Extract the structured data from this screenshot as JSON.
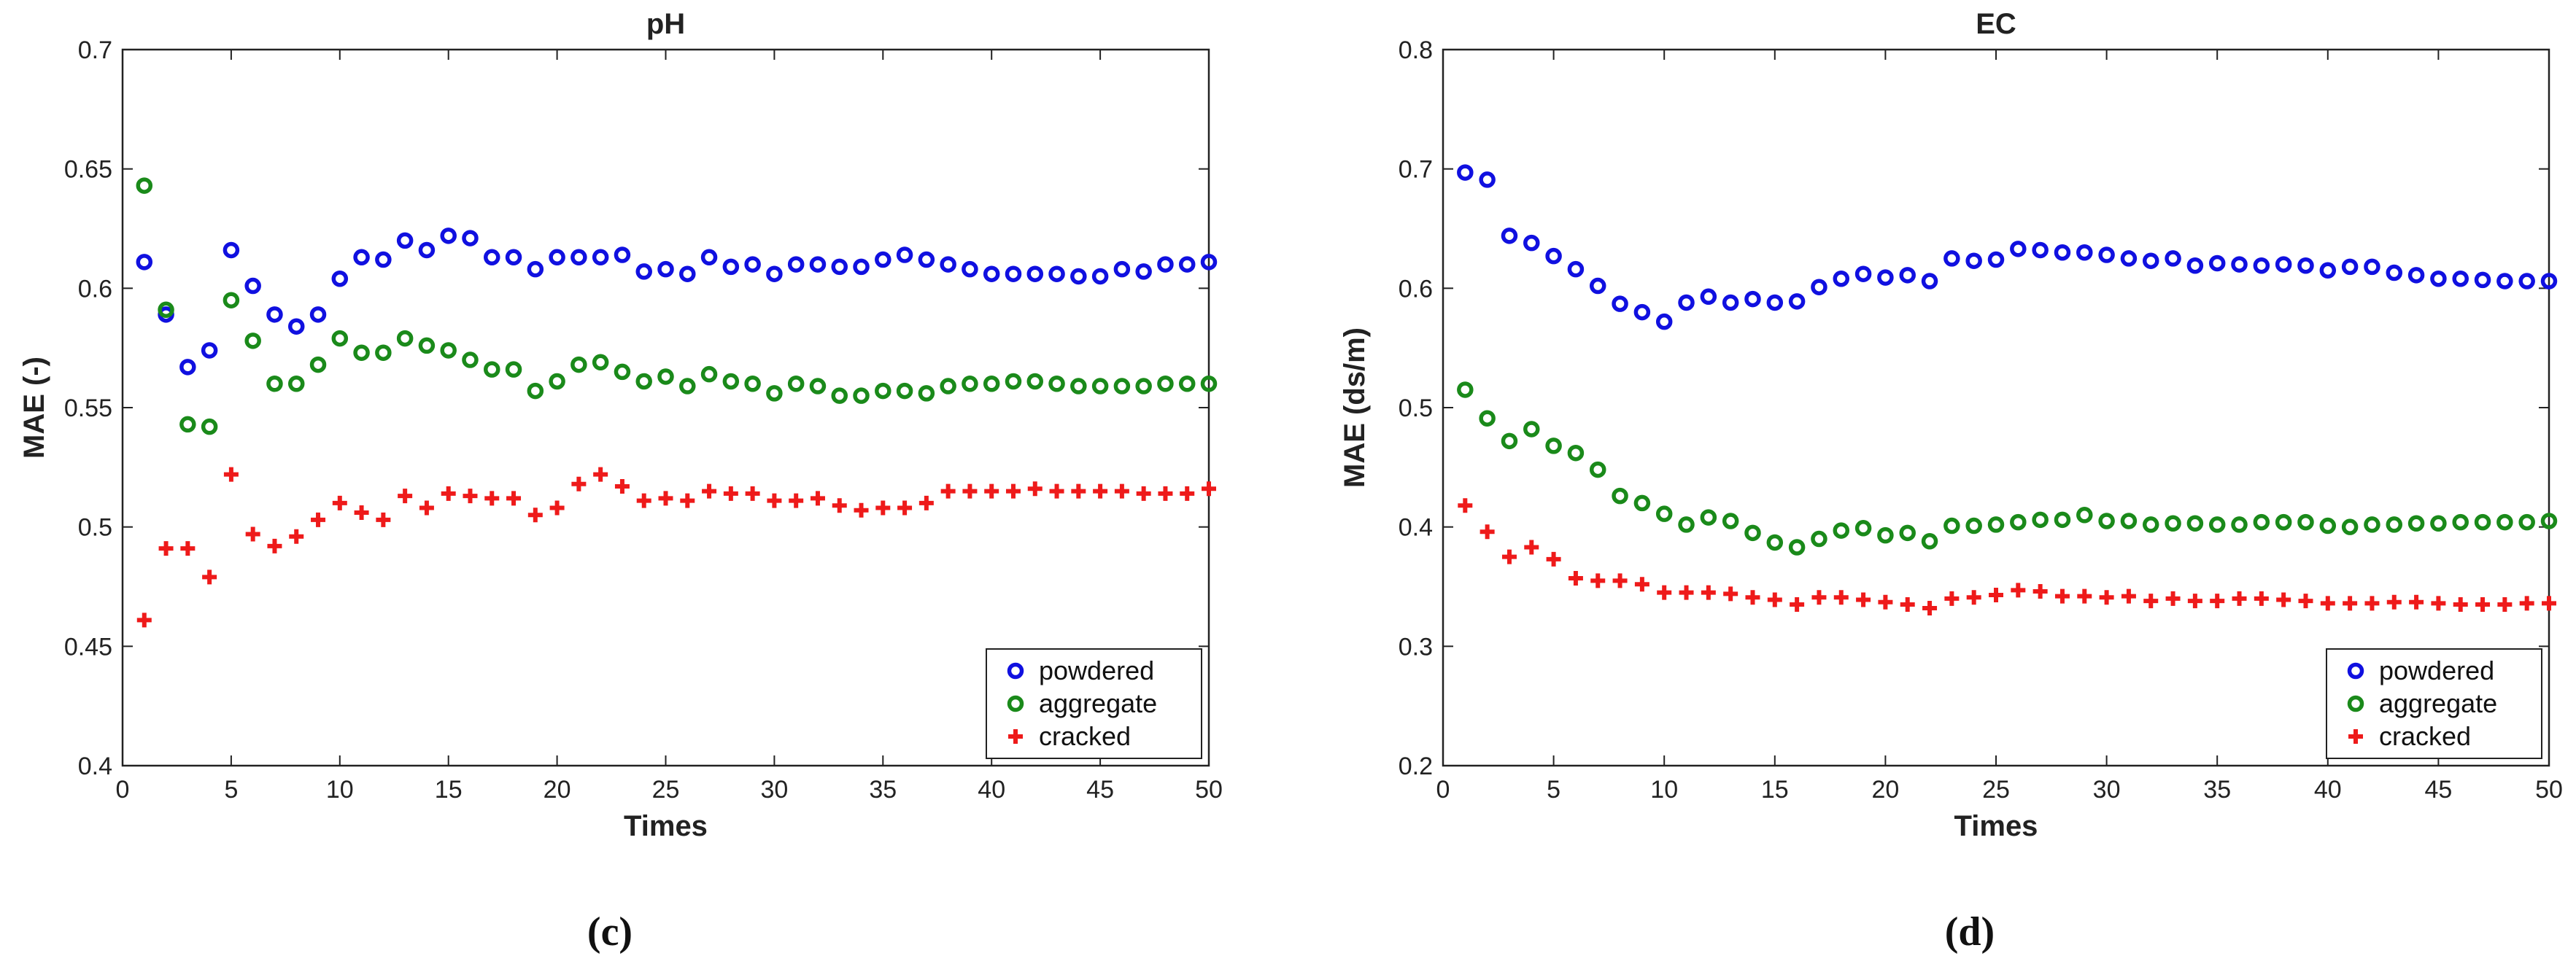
{
  "chart_data": [
    {
      "type": "scatter",
      "panel_label": "(c)",
      "title": "pH",
      "xlabel": "Times",
      "ylabel": "MAE (-)",
      "xlim": [
        0,
        50
      ],
      "ylim": [
        0.4,
        0.7
      ],
      "xticks": [
        0,
        5,
        10,
        15,
        20,
        25,
        30,
        35,
        40,
        45,
        50
      ],
      "xtick_labels": [
        "0",
        "5",
        "10",
        "15",
        "20",
        "25",
        "30",
        "35",
        "40",
        "45",
        "50"
      ],
      "yticks": [
        0.4,
        0.45,
        0.5,
        0.55,
        0.6,
        0.65,
        0.7
      ],
      "ytick_labels": [
        "0.4",
        "0.45",
        "0.5",
        "0.55",
        "0.6",
        "0.65",
        "0.7"
      ],
      "legend_position": "bottom-right",
      "x": [
        1,
        2,
        3,
        4,
        5,
        6,
        7,
        8,
        9,
        10,
        11,
        12,
        13,
        14,
        15,
        16,
        17,
        18,
        19,
        20,
        21,
        22,
        23,
        24,
        25,
        26,
        27,
        28,
        29,
        30,
        31,
        32,
        33,
        34,
        35,
        36,
        37,
        38,
        39,
        40,
        41,
        42,
        43,
        44,
        45,
        46,
        47,
        48,
        49,
        50
      ],
      "series": [
        {
          "name": "powdered",
          "color": "#1010e0",
          "marker": "circle",
          "values": [
            0.611,
            0.589,
            0.567,
            0.574,
            0.616,
            0.601,
            0.589,
            0.584,
            0.589,
            0.604,
            0.613,
            0.612,
            0.62,
            0.616,
            0.622,
            0.621,
            0.613,
            0.613,
            0.608,
            0.613,
            0.613,
            0.613,
            0.614,
            0.607,
            0.608,
            0.606,
            0.613,
            0.609,
            0.61,
            0.606,
            0.61,
            0.61,
            0.609,
            0.609,
            0.612,
            0.614,
            0.612,
            0.61,
            0.608,
            0.606,
            0.606,
            0.606,
            0.606,
            0.605,
            0.605,
            0.608,
            0.607,
            0.61,
            0.61,
            0.611
          ]
        },
        {
          "name": "aggregate",
          "color": "#1a8a1a",
          "marker": "circle",
          "values": [
            0.643,
            0.591,
            0.543,
            0.542,
            0.595,
            0.578,
            0.56,
            0.56,
            0.568,
            0.579,
            0.573,
            0.573,
            0.579,
            0.576,
            0.574,
            0.57,
            0.566,
            0.566,
            0.557,
            0.561,
            0.568,
            0.569,
            0.565,
            0.561,
            0.563,
            0.559,
            0.564,
            0.561,
            0.56,
            0.556,
            0.56,
            0.559,
            0.555,
            0.555,
            0.557,
            0.557,
            0.556,
            0.559,
            0.56,
            0.56,
            0.561,
            0.561,
            0.56,
            0.559,
            0.559,
            0.559,
            0.559,
            0.56,
            0.56,
            0.56
          ]
        },
        {
          "name": "cracked",
          "color": "#ee1a1a",
          "marker": "plus",
          "values": [
            0.461,
            0.491,
            0.491,
            0.479,
            0.522,
            0.497,
            0.492,
            0.496,
            0.503,
            0.51,
            0.506,
            0.503,
            0.513,
            0.508,
            0.514,
            0.513,
            0.512,
            0.512,
            0.505,
            0.508,
            0.518,
            0.522,
            0.517,
            0.511,
            0.512,
            0.511,
            0.515,
            0.514,
            0.514,
            0.511,
            0.511,
            0.512,
            0.509,
            0.507,
            0.508,
            0.508,
            0.51,
            0.515,
            0.515,
            0.515,
            0.515,
            0.516,
            0.515,
            0.515,
            0.515,
            0.515,
            0.514,
            0.514,
            0.514,
            0.516
          ]
        }
      ]
    },
    {
      "type": "scatter",
      "panel_label": "(d)",
      "title": "EC",
      "xlabel": "Times",
      "ylabel": "MAE (ds/m)",
      "xlim": [
        0,
        50
      ],
      "ylim": [
        0.2,
        0.8
      ],
      "xticks": [
        0,
        5,
        10,
        15,
        20,
        25,
        30,
        35,
        40,
        45,
        50
      ],
      "xtick_labels": [
        "0",
        "5",
        "10",
        "15",
        "20",
        "25",
        "30",
        "35",
        "40",
        "45",
        "50"
      ],
      "yticks": [
        0.2,
        0.3,
        0.4,
        0.5,
        0.6,
        0.7,
        0.8
      ],
      "ytick_labels": [
        "0.2",
        "0.3",
        "0.4",
        "0.5",
        "0.6",
        "0.7",
        "0.8"
      ],
      "legend_position": "bottom-right",
      "x": [
        1,
        2,
        3,
        4,
        5,
        6,
        7,
        8,
        9,
        10,
        11,
        12,
        13,
        14,
        15,
        16,
        17,
        18,
        19,
        20,
        21,
        22,
        23,
        24,
        25,
        26,
        27,
        28,
        29,
        30,
        31,
        32,
        33,
        34,
        35,
        36,
        37,
        38,
        39,
        40,
        41,
        42,
        43,
        44,
        45,
        46,
        47,
        48,
        49,
        50
      ],
      "series": [
        {
          "name": "powdered",
          "color": "#1010e0",
          "marker": "circle",
          "values": [
            0.697,
            0.691,
            0.644,
            0.638,
            0.627,
            0.616,
            0.602,
            0.587,
            0.58,
            0.572,
            0.588,
            0.593,
            0.588,
            0.591,
            0.588,
            0.589,
            0.601,
            0.608,
            0.612,
            0.609,
            0.611,
            0.606,
            0.625,
            0.623,
            0.624,
            0.633,
            0.632,
            0.63,
            0.63,
            0.628,
            0.625,
            0.623,
            0.625,
            0.619,
            0.621,
            0.62,
            0.619,
            0.62,
            0.619,
            0.615,
            0.618,
            0.618,
            0.613,
            0.611,
            0.608,
            0.608,
            0.607,
            0.606,
            0.606,
            0.606
          ]
        },
        {
          "name": "aggregate",
          "color": "#1a8a1a",
          "marker": "circle",
          "values": [
            0.515,
            0.491,
            0.472,
            0.482,
            0.468,
            0.462,
            0.448,
            0.426,
            0.42,
            0.411,
            0.402,
            0.408,
            0.405,
            0.395,
            0.387,
            0.383,
            0.39,
            0.397,
            0.399,
            0.393,
            0.395,
            0.388,
            0.401,
            0.401,
            0.402,
            0.404,
            0.406,
            0.406,
            0.41,
            0.405,
            0.405,
            0.402,
            0.403,
            0.403,
            0.402,
            0.402,
            0.404,
            0.404,
            0.404,
            0.401,
            0.4,
            0.402,
            0.402,
            0.403,
            0.403,
            0.404,
            0.404,
            0.404,
            0.404,
            0.405
          ]
        },
        {
          "name": "cracked",
          "color": "#ee1a1a",
          "marker": "plus",
          "values": [
            0.418,
            0.396,
            0.375,
            0.383,
            0.373,
            0.357,
            0.355,
            0.355,
            0.352,
            0.345,
            0.345,
            0.345,
            0.344,
            0.341,
            0.339,
            0.335,
            0.341,
            0.341,
            0.339,
            0.337,
            0.335,
            0.332,
            0.34,
            0.341,
            0.343,
            0.347,
            0.346,
            0.342,
            0.342,
            0.341,
            0.342,
            0.338,
            0.34,
            0.338,
            0.338,
            0.34,
            0.34,
            0.339,
            0.338,
            0.336,
            0.336,
            0.336,
            0.337,
            0.337,
            0.336,
            0.335,
            0.335,
            0.335,
            0.336,
            0.336
          ]
        }
      ]
    }
  ]
}
